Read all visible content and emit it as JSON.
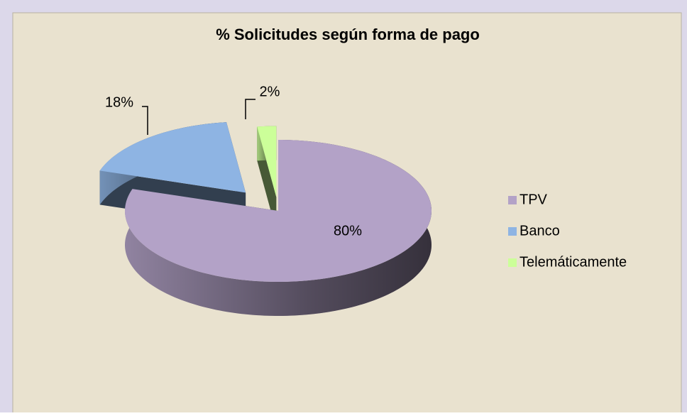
{
  "chart_data": {
    "type": "pie",
    "title": "% Solicitudes según forma de pago",
    "categories": [
      "TPV",
      "Banco",
      "Telemáticamente"
    ],
    "values": [
      80,
      18,
      2
    ],
    "value_labels": [
      "80%",
      "18%",
      "2%"
    ],
    "colors": [
      "#b3a2c7",
      "#8eb4e3",
      "#ccff99"
    ],
    "legend": "right"
  }
}
